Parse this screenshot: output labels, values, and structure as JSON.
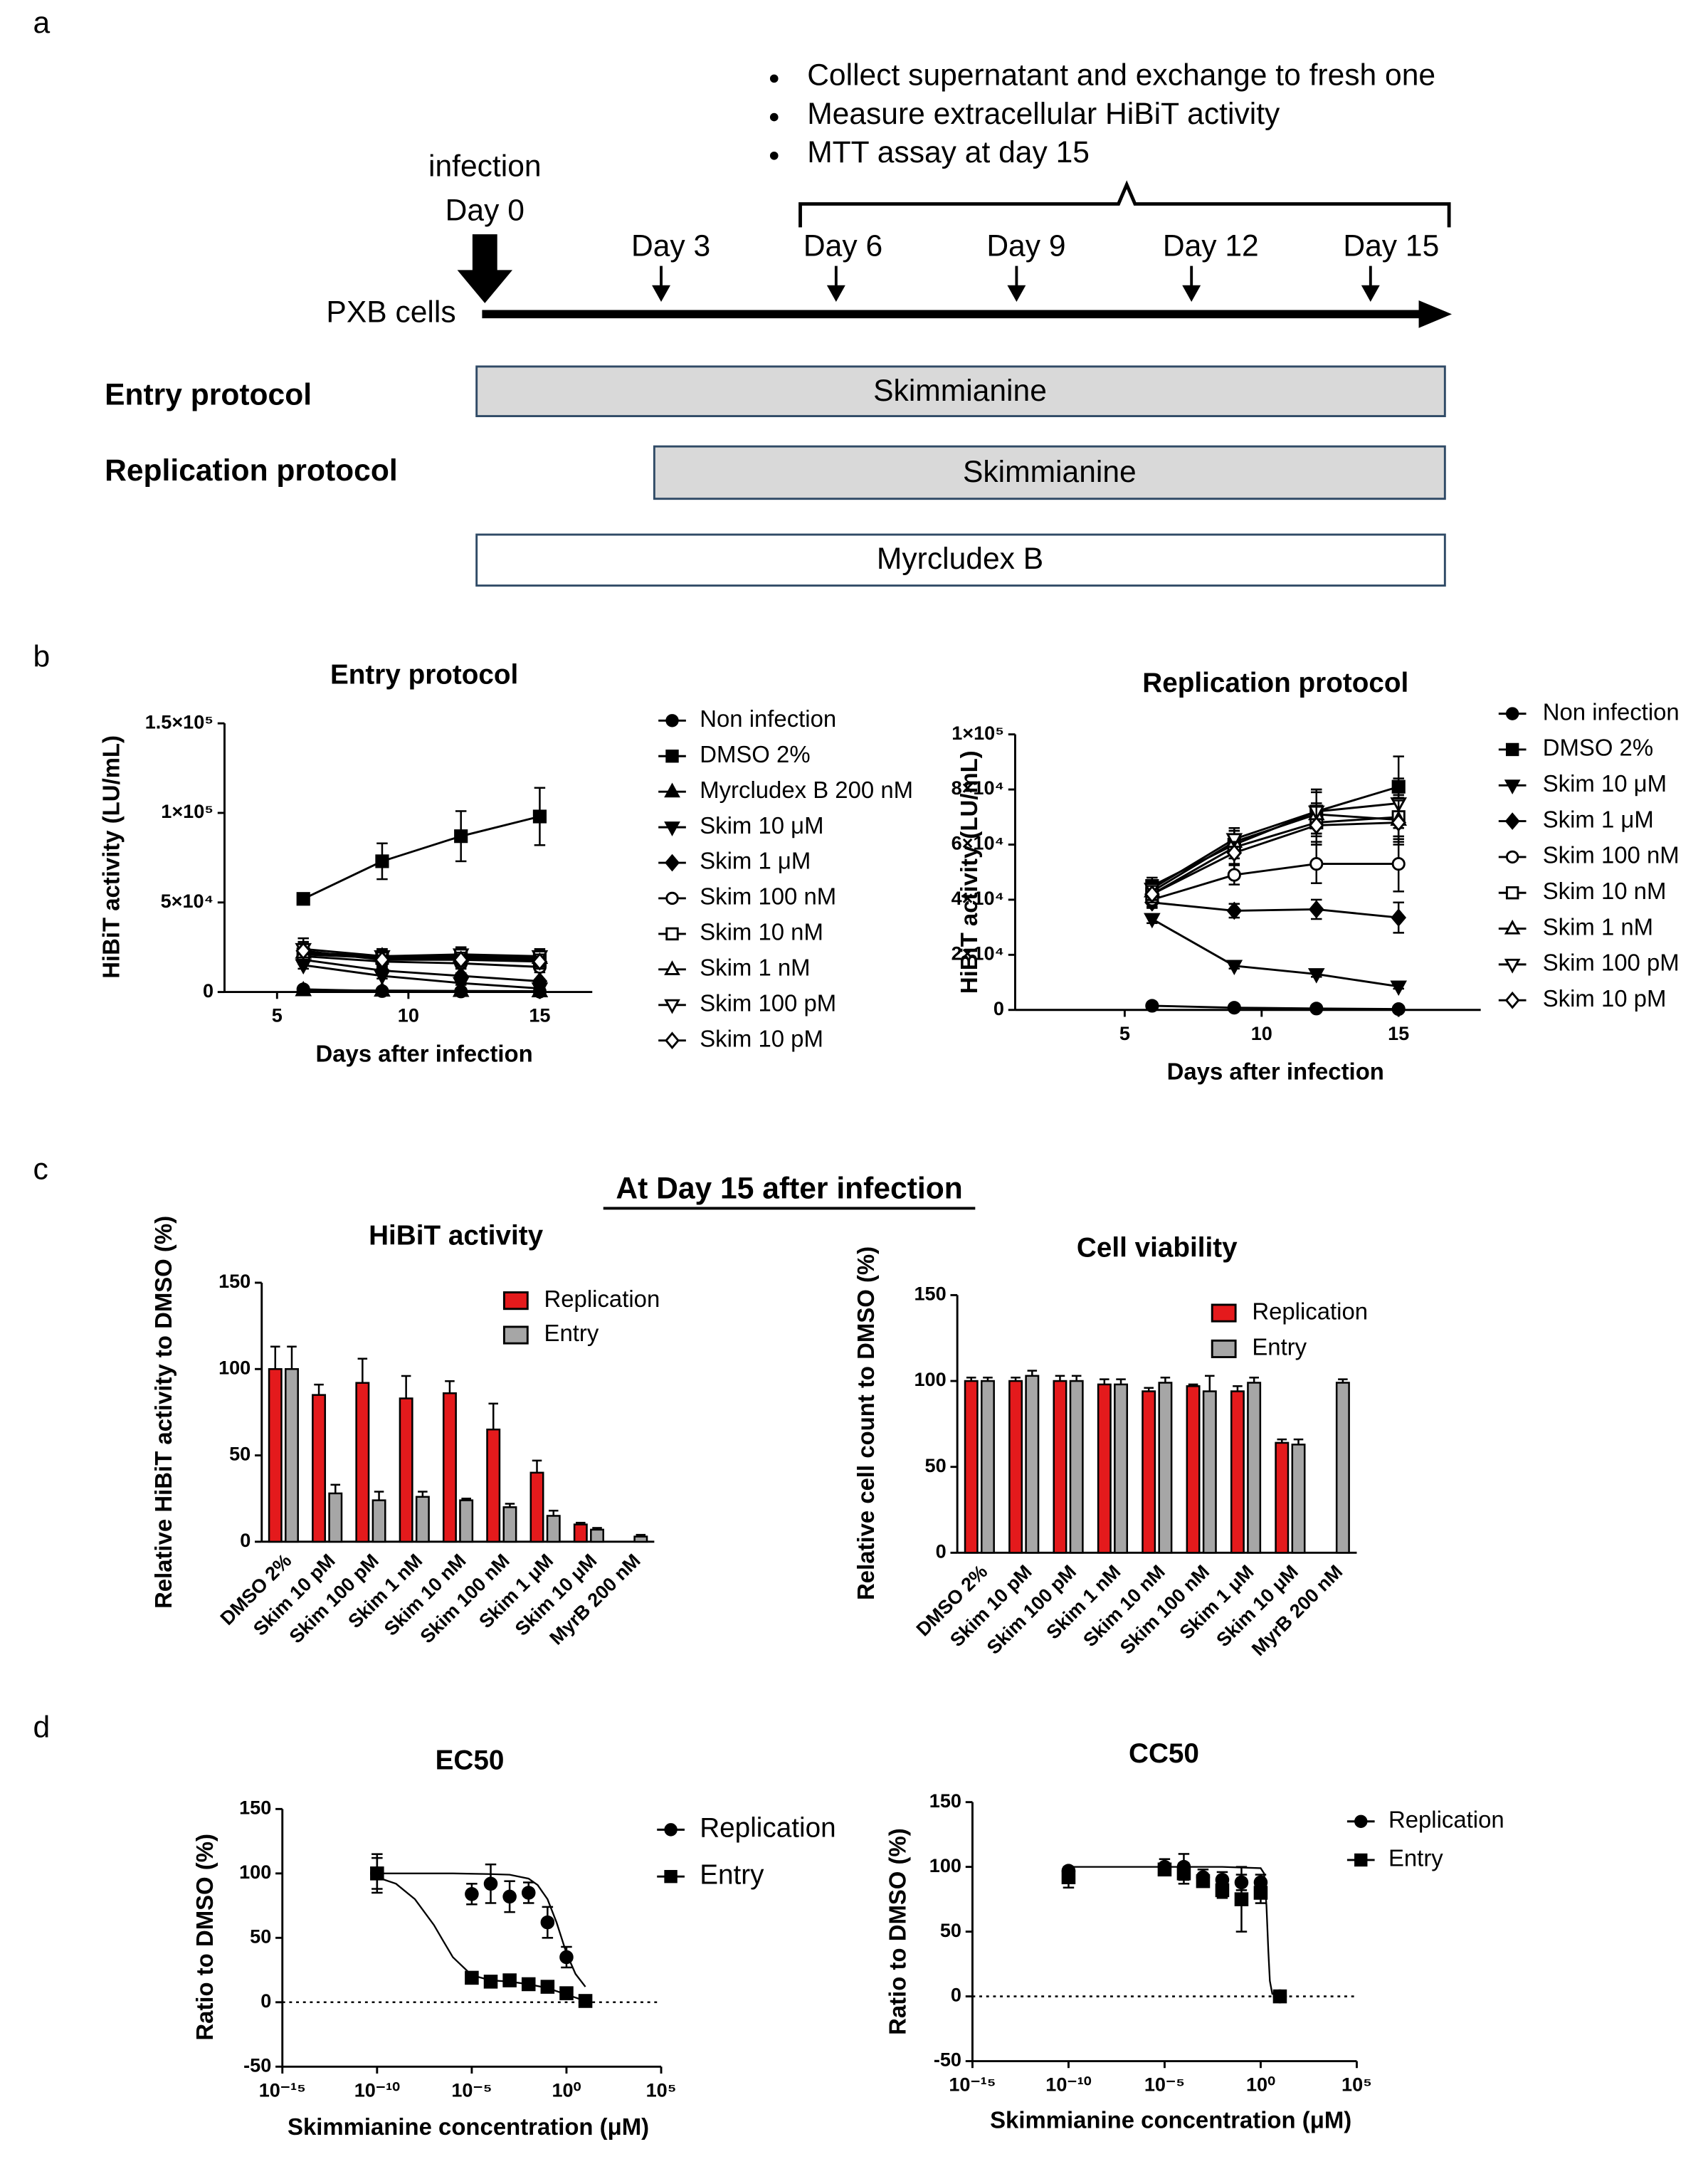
{
  "panel_labels": [
    "a",
    "b",
    "c",
    "d"
  ],
  "timeline": {
    "bullets": [
      "Collect supernatant and exchange to fresh one",
      "Measure extracellular HiBiT activity",
      "MTT assay at day 15"
    ],
    "infection": "infection",
    "days": [
      "Day 0",
      "Day 3",
      "Day 6",
      "Day 9",
      "Day 12",
      "Day 15"
    ],
    "cells": "PXB cells",
    "protocols": [
      "Entry protocol",
      "Replication protocol"
    ],
    "bars": [
      "Skimmianine",
      "Skimmianine",
      "Myrcludex B"
    ]
  },
  "panel_c_heading": "At Day 15 after infection",
  "chart_data": [
    {
      "type": "line",
      "title": "Entry protocol",
      "xlabel": "Days after infection",
      "ylabel": "HiBiT activity (LU/mL)",
      "x": [
        6,
        9,
        12,
        15
      ],
      "xlim": [
        3,
        17
      ],
      "xticks": [
        5,
        10,
        15
      ],
      "ylim": [
        0,
        150000
      ],
      "yticks": [
        0,
        {
          "value": 50000,
          "label": "5×10⁴"
        },
        {
          "value": 100000,
          "label": "1×10⁵"
        },
        {
          "value": 150000,
          "label": "1.5×10⁵"
        }
      ],
      "series": [
        {
          "name": "Non infection",
          "color": "#000000",
          "marker": "circle",
          "filled": true,
          "values": [
            1500,
            500,
            300,
            200
          ],
          "errors": [
            300,
            200,
            100,
            100
          ]
        },
        {
          "name": "DMSO 2%",
          "color": "#000000",
          "marker": "square",
          "filled": true,
          "values": [
            52000,
            73000,
            87000,
            98000
          ],
          "errors": [
            3000,
            10000,
            14000,
            16000
          ]
        },
        {
          "name": "Myrcludex B 200 nM",
          "color": "#000000",
          "marker": "triangle-up",
          "filled": true,
          "values": [
            1000,
            800,
            600,
            400
          ],
          "errors": [
            300,
            200,
            200,
            100
          ]
        },
        {
          "name": "Skim 10 μM",
          "color": "#000000",
          "marker": "triangle-down",
          "filled": true,
          "values": [
            15000,
            9000,
            5000,
            2000
          ],
          "errors": [
            2000,
            1500,
            1000,
            500
          ]
        },
        {
          "name": "Skim 1 μM",
          "color": "#000000",
          "marker": "diamond",
          "filled": true,
          "values": [
            18000,
            12000,
            9000,
            6000
          ],
          "errors": [
            2500,
            2000,
            1500,
            1000
          ]
        },
        {
          "name": "Skim 100 nM",
          "color": "#000000",
          "marker": "circle",
          "filled": false,
          "values": [
            20000,
            17000,
            16000,
            14000
          ],
          "errors": [
            4000,
            3000,
            3000,
            3000
          ]
        },
        {
          "name": "Skim 10 nM",
          "color": "#000000",
          "marker": "square",
          "filled": false,
          "values": [
            21000,
            19000,
            19000,
            18000
          ],
          "errors": [
            5000,
            4000,
            4000,
            4000
          ]
        },
        {
          "name": "Skim 1 nM",
          "color": "#000000",
          "marker": "triangle-up",
          "filled": false,
          "values": [
            22000,
            20000,
            20000,
            19000
          ],
          "errors": [
            5000,
            4000,
            4000,
            4000
          ]
        },
        {
          "name": "Skim 100 pM",
          "color": "#000000",
          "marker": "triangle-down",
          "filled": false,
          "values": [
            24000,
            20000,
            21000,
            20000
          ],
          "errors": [
            6000,
            4000,
            4000,
            4000
          ]
        },
        {
          "name": "Skim 10 pM",
          "color": "#000000",
          "marker": "diamond",
          "filled": false,
          "values": [
            23000,
            18000,
            18000,
            17000
          ],
          "errors": [
            5000,
            4000,
            4000,
            4000
          ]
        }
      ]
    },
    {
      "type": "line",
      "title": "Replication protocol",
      "xlabel": "Days after infection",
      "ylabel": "HiBiT activity (LU/mL)",
      "x": [
        6,
        9,
        12,
        15
      ],
      "xlim": [
        1,
        18
      ],
      "xticks": [
        5,
        10,
        15
      ],
      "ylim": [
        0,
        100000
      ],
      "yticks": [
        0,
        {
          "value": 20000,
          "label": "2×10⁴"
        },
        {
          "value": 40000,
          "label": "4×10⁴"
        },
        {
          "value": 60000,
          "label": "6×10⁴"
        },
        {
          "value": 80000,
          "label": "8×10⁴"
        },
        {
          "value": 100000,
          "label": "1×10⁵"
        }
      ],
      "series": [
        {
          "name": "Non infection",
          "color": "#000000",
          "marker": "circle",
          "filled": true,
          "values": [
            1500,
            800,
            500,
            300
          ],
          "errors": [
            300,
            200,
            100,
            100
          ]
        },
        {
          "name": "DMSO 2%",
          "color": "#000000",
          "marker": "square",
          "filled": true,
          "values": [
            45000,
            60000,
            72000,
            81000
          ],
          "errors": [
            3000,
            5000,
            8000,
            11000
          ]
        },
        {
          "name": "Skim 10 μM",
          "color": "#000000",
          "marker": "triangle-down",
          "filled": true,
          "values": [
            33000,
            16000,
            13000,
            8500
          ],
          "errors": [
            1500,
            1000,
            1000,
            800
          ]
        },
        {
          "name": "Skim 1 μM",
          "color": "#000000",
          "marker": "diamond",
          "filled": true,
          "values": [
            39000,
            36000,
            36500,
            33500
          ],
          "errors": [
            2000,
            2500,
            3500,
            5500
          ]
        },
        {
          "name": "Skim 100 nM",
          "color": "#000000",
          "marker": "circle",
          "filled": false,
          "values": [
            40000,
            49000,
            53000,
            53000
          ],
          "errors": [
            2500,
            3500,
            7000,
            10000
          ]
        },
        {
          "name": "Skim 10 nM",
          "color": "#000000",
          "marker": "square",
          "filled": false,
          "values": [
            42000,
            59000,
            68000,
            70000
          ],
          "errors": [
            3000,
            4000,
            7000,
            8000
          ]
        },
        {
          "name": "Skim 1 nM",
          "color": "#000000",
          "marker": "triangle-up",
          "filled": false,
          "values": [
            43000,
            61000,
            71000,
            69000
          ],
          "errors": [
            3000,
            4000,
            8000,
            8000
          ]
        },
        {
          "name": "Skim 100 pM",
          "color": "#000000",
          "marker": "triangle-down",
          "filled": false,
          "values": [
            44000,
            62000,
            72000,
            75000
          ],
          "errors": [
            3000,
            4000,
            8000,
            9000
          ]
        },
        {
          "name": "Skim 10 pM",
          "color": "#000000",
          "marker": "diamond",
          "filled": false,
          "values": [
            42000,
            57000,
            67000,
            68000
          ],
          "errors": [
            3000,
            4000,
            7000,
            8000
          ]
        }
      ]
    },
    {
      "type": "bar",
      "title": "HiBiT activity",
      "ylabel": "Relative HiBiT activity to DMSO (%)",
      "categories": [
        "DMSO 2%",
        "Skim 10 pM",
        "Skim 100 pM",
        "Skim 1 nM",
        "Skim 10 nM",
        "Skim 100 nM",
        "Skim 1 μM",
        "Skim 10 μM",
        "MyrB 200 nM"
      ],
      "ylim": [
        0,
        150
      ],
      "yticks": [
        0,
        50,
        100,
        150
      ],
      "series": [
        {
          "name": "Replication",
          "color": "#e41a1c",
          "values": [
            100,
            85,
            92,
            83,
            86,
            65,
            40,
            10,
            null
          ],
          "errors": [
            13,
            6,
            14,
            13,
            7,
            15,
            7,
            1,
            null
          ]
        },
        {
          "name": "Entry",
          "color": "#a6a6a6",
          "values": [
            100,
            28,
            24,
            26,
            24,
            20,
            15,
            7,
            3
          ],
          "errors": [
            13,
            5,
            5,
            3,
            1,
            2,
            3,
            1,
            1
          ]
        }
      ]
    },
    {
      "type": "bar",
      "title": "Cell viability",
      "ylabel": "Relative cell count to DMSO (%)",
      "categories": [
        "DMSO 2%",
        "Skim 10 pM",
        "Skim 100 pM",
        "Skim 1 nM",
        "Skim 10 nM",
        "Skim 100 nM",
        "Skim 1 μM",
        "Skim 10 μM",
        "MyrB 200 nM"
      ],
      "ylim": [
        0,
        150
      ],
      "yticks": [
        0,
        50,
        100,
        150
      ],
      "series": [
        {
          "name": "Replication",
          "color": "#e41a1c",
          "values": [
            100,
            100,
            100,
            98,
            94,
            97,
            94,
            64,
            null
          ],
          "errors": [
            2,
            2,
            3,
            3,
            2,
            1,
            3,
            2,
            null
          ]
        },
        {
          "name": "Entry",
          "color": "#a6a6a6",
          "values": [
            100,
            103,
            100,
            98,
            99,
            94,
            99,
            63,
            99
          ],
          "errors": [
            2,
            3,
            3,
            3,
            3,
            9,
            3,
            3,
            2
          ]
        }
      ]
    },
    {
      "type": "scatter",
      "title": "EC50",
      "xlabel": "Skimmianine concentration (μM)",
      "ylabel": "Ratio to DMSO (%)",
      "xscale": "log",
      "xlim": [
        1e-15,
        100000
      ],
      "xticks": [
        {
          "value": 1e-15,
          "label": "10⁻¹⁵"
        },
        {
          "value": 1e-10,
          "label": "10⁻¹⁰"
        },
        {
          "value": 1e-05,
          "label": "10⁻⁵"
        },
        {
          "value": 1,
          "label": "10⁰"
        },
        {
          "value": 100000,
          "label": "10⁵"
        }
      ],
      "ylim": [
        -50,
        150
      ],
      "yticks": [
        -50,
        0,
        50,
        100,
        150
      ],
      "hline": 0,
      "series": [
        {
          "name": "Replication",
          "color": "#000000",
          "marker": "circle",
          "filled": true,
          "x": [
            1e-10,
            1e-05,
            0.0001,
            0.001,
            0.01,
            0.1,
            1
          ],
          "values": [
            100,
            84,
            92,
            82,
            85,
            62,
            35
          ],
          "errors": [
            15,
            8,
            15,
            12,
            8,
            12,
            8
          ]
        },
        {
          "name": "Entry",
          "color": "#000000",
          "marker": "square",
          "filled": true,
          "x": [
            1e-10,
            1e-05,
            0.0001,
            0.001,
            0.01,
            0.1,
            1,
            10
          ],
          "values": [
            100,
            19,
            16,
            17,
            14,
            12,
            7,
            1
          ],
          "errors": [
            12,
            2,
            2,
            2,
            2,
            2,
            2,
            1
          ]
        }
      ],
      "fit_curves": [
        {
          "x": [
            1e-10,
            1e-06,
            0.0001,
            0.001,
            0.01,
            0.03,
            0.1,
            0.3,
            1,
            3,
            10
          ],
          "values": [
            100,
            100,
            99.5,
            99,
            96,
            91,
            80,
            62,
            38,
            22,
            12
          ]
        },
        {
          "x": [
            1e-10,
            1e-09,
            1e-08,
            1e-07,
            3e-07,
            1e-06,
            1e-05,
            0.0001,
            0.001,
            0.01,
            0.1,
            1,
            10
          ],
          "values": [
            97,
            92,
            80,
            60,
            48,
            35,
            21,
            17,
            16,
            14,
            11,
            6,
            1
          ]
        }
      ]
    },
    {
      "type": "scatter",
      "title": "CC50",
      "xlabel": "Skimmianine concentration (μM)",
      "ylabel": "Ratio to DMSO (%)",
      "xscale": "log",
      "xlim": [
        1e-15,
        100000
      ],
      "xticks": [
        {
          "value": 1e-15,
          "label": "10⁻¹⁵"
        },
        {
          "value": 1e-10,
          "label": "10⁻¹⁰"
        },
        {
          "value": 1e-05,
          "label": "10⁻⁵"
        },
        {
          "value": 1,
          "label": "10⁰"
        },
        {
          "value": 100000,
          "label": "10⁵"
        }
      ],
      "ylim": [
        -50,
        150
      ],
      "yticks": [
        -50,
        0,
        50,
        100,
        150
      ],
      "hline": 0,
      "series": [
        {
          "name": "Replication",
          "color": "#000000",
          "marker": "circle",
          "filled": true,
          "x": [
            1e-10,
            1e-05,
            0.0001,
            0.001,
            0.01,
            0.1,
            1,
            10
          ],
          "values": [
            97,
            100,
            100,
            92,
            90,
            88,
            88,
            0
          ],
          "errors": [
            2,
            6,
            10,
            6,
            6,
            6,
            6,
            3
          ]
        },
        {
          "name": "Entry",
          "color": "#000000",
          "marker": "square",
          "filled": true,
          "x": [
            1e-10,
            1e-05,
            0.0001,
            0.001,
            0.01,
            0.1,
            1,
            10
          ],
          "values": [
            92,
            98,
            95,
            89,
            82,
            75,
            80,
            0
          ],
          "errors": [
            8,
            4,
            8,
            4,
            6,
            25,
            8,
            3
          ]
        }
      ],
      "fit_curves": [
        {
          "x": [
            1e-10,
            0.01,
            1,
            1.5,
            2,
            2.5,
            3,
            4,
            10
          ],
          "values": [
            100,
            100,
            99,
            95,
            70,
            35,
            12,
            2,
            0
          ]
        }
      ]
    }
  ]
}
